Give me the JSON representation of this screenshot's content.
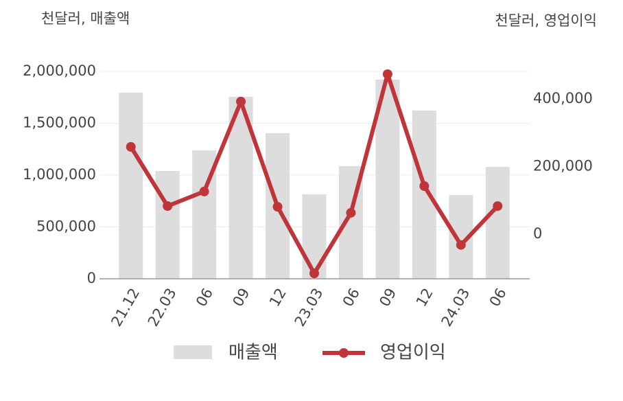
{
  "chart_data": {
    "type": "bar",
    "y_axis_title": "천달러, 매출액",
    "y2_axis_title": "천달러, 영업이익",
    "categories": [
      "21.12",
      "22.03",
      "06",
      "09",
      "12",
      "23.03",
      "06",
      "09",
      "12",
      "24.03",
      "06"
    ],
    "series": [
      {
        "name": "매출액",
        "type": "bar",
        "color": "#dddddd",
        "values": [
          1795000,
          1040000,
          1238000,
          1755000,
          1404000,
          815000,
          1086000,
          1921000,
          1623000,
          808000,
          1079000
        ]
      },
      {
        "name": "영업이익",
        "type": "line",
        "axis": "y2",
        "color": "#c0353a",
        "values": [
          258000,
          83000,
          126000,
          392000,
          81000,
          -116000,
          63000,
          473000,
          142000,
          -32000,
          83000
        ]
      }
    ],
    "ylim": [
      0,
      2000000
    ],
    "yticks": [
      0,
      {
        "value": 500000,
        "label": "500,000"
      },
      {
        "value": 1000000,
        "label": "1,000,000"
      },
      {
        "value": 1500000,
        "label": "1,500,000"
      },
      {
        "value": 2000000,
        "label": "2,000,000"
      }
    ],
    "y2lim": [
      -132000,
      481000
    ],
    "y2ticks": [
      0,
      {
        "value": 200000,
        "label": "200,000"
      },
      {
        "value": 400000,
        "label": "400,000"
      }
    ],
    "grid": true,
    "legend": "bottom"
  }
}
